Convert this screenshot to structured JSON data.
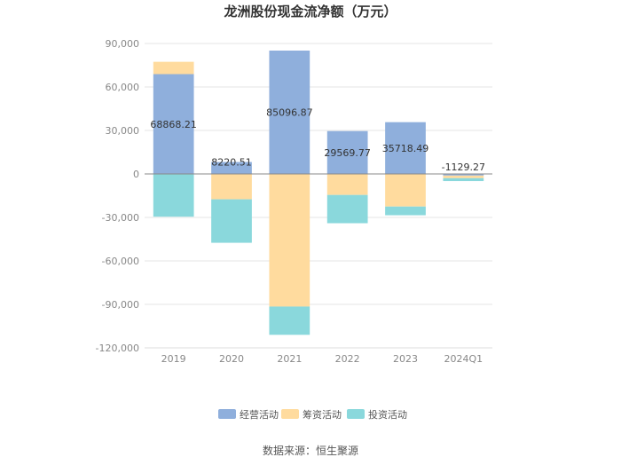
{
  "chart_data": {
    "type": "bar",
    "stacked": true,
    "title": "龙洲股份现金流净额（万元）",
    "categories": [
      "2019",
      "2020",
      "2021",
      "2022",
      "2023",
      "2024Q1"
    ],
    "series": [
      {
        "name": "经营活动",
        "color": "#8FAFDC",
        "values": [
          68868.21,
          8220.51,
          85096.87,
          29569.77,
          35718.49,
          -1129.27
        ]
      },
      {
        "name": "筹资活动",
        "color": "#FFDB9E",
        "values": [
          8500,
          -17500,
          -91500,
          -14500,
          -22500,
          -1800
        ]
      },
      {
        "name": "投资活动",
        "color": "#8AD8DC",
        "values": [
          -29500,
          -30000,
          -19500,
          -19500,
          -6000,
          -2000
        ]
      }
    ],
    "data_labels": [
      "68868.21",
      "8220.51",
      "85096.87",
      "29569.77",
      "35718.49",
      "-1129.27"
    ],
    "ylim": [
      -120000,
      90000
    ],
    "yticks": [
      90000,
      60000,
      30000,
      0,
      -30000,
      -60000,
      -90000,
      -120000
    ],
    "ytick_labels": [
      "90,000",
      "60,000",
      "30,000",
      "0",
      "-30,000",
      "-60,000",
      "-90,000",
      "-120,000"
    ],
    "grid": true,
    "legend_position": "bottom",
    "xlabel": "",
    "ylabel": ""
  },
  "source": "数据来源：恒生聚源"
}
